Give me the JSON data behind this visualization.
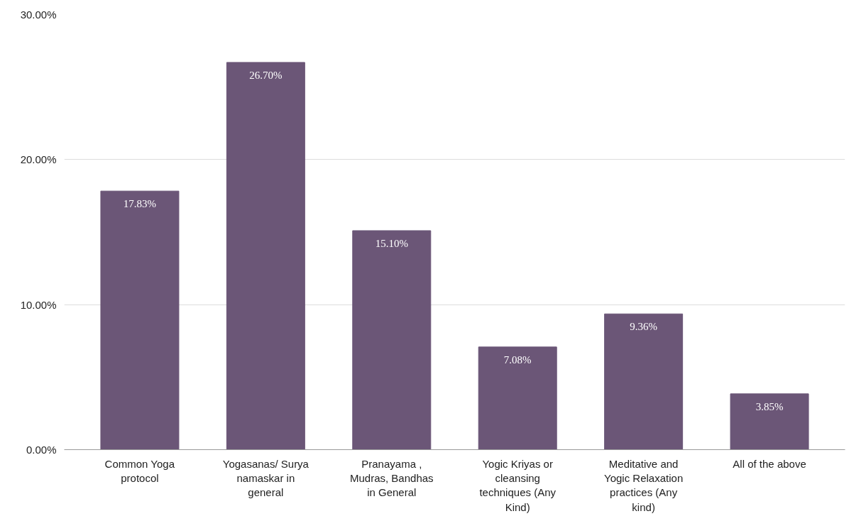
{
  "chart_data": {
    "type": "bar",
    "categories": [
      "Common Yoga protocol",
      "Yogasanas/ Surya namaskar in general",
      "Pranayama , Mudras, Bandhas in General",
      "Yogic Kriyas or cleansing techniques (Any Kind)",
      "Meditative and Yogic Relaxation practices (Any kind)",
      "All of the above"
    ],
    "values": [
      17.83,
      26.7,
      15.1,
      7.08,
      9.36,
      3.85
    ],
    "value_labels": [
      "17.83%",
      "26.70%",
      "15.10%",
      "7.08%",
      "9.36%",
      "3.85%"
    ],
    "color": "#6b5677",
    "ylim": [
      0,
      30
    ],
    "yticks": [
      {
        "value": 0,
        "label": "0.00%"
      },
      {
        "value": 10,
        "label": "10.00%"
      },
      {
        "value": 20,
        "label": "20.00%"
      },
      {
        "value": 30,
        "label": "30.00%"
      }
    ],
    "grid": "y"
  }
}
